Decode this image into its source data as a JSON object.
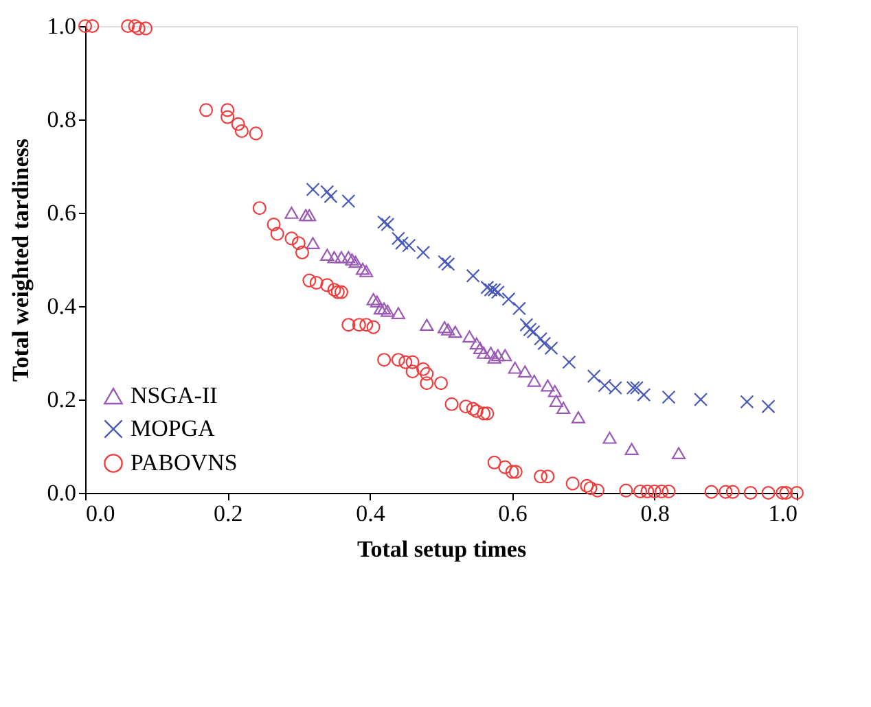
{
  "chart_data": {
    "type": "scatter",
    "xlabel": "Total setup times",
    "ylabel": "Total weighted tardiness",
    "xlim": [
      0,
      1
    ],
    "ylim": [
      0,
      1
    ],
    "xticks": [
      {
        "value": 0,
        "label": "0.0"
      },
      {
        "value": 0.2,
        "label": "0.2"
      },
      {
        "value": 0.4,
        "label": "0.4"
      },
      {
        "value": 0.6,
        "label": "0.6"
      },
      {
        "value": 0.8,
        "label": "0.8"
      },
      {
        "value": 1,
        "label": "1.0"
      }
    ],
    "yticks": [
      {
        "value": 0,
        "label": "0.0"
      },
      {
        "value": 0.2,
        "label": "0.2"
      },
      {
        "value": 0.4,
        "label": "0.4"
      },
      {
        "value": 0.6,
        "label": "0.6"
      },
      {
        "value": 0.8,
        "label": "0.8"
      },
      {
        "value": 1,
        "label": "1.0"
      }
    ],
    "grid": false,
    "legend": "bottom left",
    "series": [
      {
        "name": "NSGA-II",
        "color": "#9b59b6",
        "marker": "triangle",
        "x": [
          0.29,
          0.31,
          0.315,
          0.32,
          0.34,
          0.35,
          0.36,
          0.37,
          0.375,
          0.38,
          0.39,
          0.395,
          0.405,
          0.41,
          0.415,
          0.42,
          0.425,
          0.44,
          0.48,
          0.505,
          0.51,
          0.52,
          0.54,
          0.55,
          0.555,
          0.56,
          0.57,
          0.575,
          0.58,
          0.59,
          0.604,
          0.618,
          0.631,
          0.65,
          0.66,
          0.662,
          0.672,
          0.693,
          0.737,
          0.768,
          0.834
        ],
        "values": [
          0.6,
          0.595,
          0.595,
          0.535,
          0.51,
          0.505,
          0.505,
          0.505,
          0.5,
          0.495,
          0.48,
          0.475,
          0.415,
          0.41,
          0.395,
          0.395,
          0.39,
          0.385,
          0.36,
          0.355,
          0.35,
          0.345,
          0.335,
          0.32,
          0.31,
          0.3,
          0.3,
          0.29,
          0.295,
          0.295,
          0.268,
          0.26,
          0.24,
          0.23,
          0.218,
          0.197,
          0.182,
          0.162,
          0.118,
          0.094,
          0.085
        ]
      },
      {
        "name": "MOPGA",
        "color": "#4a5ab8",
        "marker": "cross",
        "x": [
          0.32,
          0.34,
          0.345,
          0.37,
          0.42,
          0.425,
          0.44,
          0.445,
          0.455,
          0.475,
          0.505,
          0.51,
          0.545,
          0.565,
          0.57,
          0.575,
          0.58,
          0.595,
          0.61,
          0.62,
          0.625,
          0.63,
          0.64,
          0.645,
          0.655,
          0.68,
          0.715,
          0.73,
          0.745,
          0.77,
          0.775,
          0.785,
          0.82,
          0.865,
          0.93,
          0.96
        ],
        "values": [
          0.65,
          0.645,
          0.635,
          0.625,
          0.58,
          0.575,
          0.545,
          0.535,
          0.53,
          0.515,
          0.495,
          0.49,
          0.465,
          0.44,
          0.435,
          0.435,
          0.43,
          0.415,
          0.395,
          0.36,
          0.35,
          0.345,
          0.33,
          0.32,
          0.31,
          0.28,
          0.25,
          0.23,
          0.225,
          0.225,
          0.225,
          0.21,
          0.205,
          0.2,
          0.195,
          0.185
        ]
      },
      {
        "name": "PABOVNS",
        "color": "#f03c3c",
        "marker": "circle",
        "x": [
          0,
          0.01,
          0.06,
          0.07,
          0.075,
          0.085,
          0.17,
          0.2,
          0.2,
          0.215,
          0.22,
          0.24,
          0.245,
          0.265,
          0.27,
          0.29,
          0.3,
          0.305,
          0.315,
          0.325,
          0.34,
          0.35,
          0.355,
          0.36,
          0.37,
          0.385,
          0.395,
          0.405,
          0.42,
          0.44,
          0.45,
          0.46,
          0.46,
          0.475,
          0.48,
          0.48,
          0.5,
          0.515,
          0.535,
          0.545,
          0.55,
          0.56,
          0.565,
          0.575,
          0.59,
          0.6,
          0.605,
          0.64,
          0.65,
          0.685,
          0.705,
          0.71,
          0.72,
          0.76,
          0.78,
          0.79,
          0.8,
          0.81,
          0.82,
          0.88,
          0.9,
          0.91,
          0.935,
          0.96,
          0.98,
          0.985,
          1.0
        ],
        "values": [
          1,
          1,
          1,
          1,
          0.995,
          0.995,
          0.82,
          0.82,
          0.805,
          0.79,
          0.775,
          0.77,
          0.61,
          0.575,
          0.555,
          0.545,
          0.535,
          0.515,
          0.455,
          0.45,
          0.445,
          0.435,
          0.43,
          0.43,
          0.36,
          0.36,
          0.36,
          0.355,
          0.285,
          0.285,
          0.28,
          0.28,
          0.26,
          0.265,
          0.255,
          0.235,
          0.235,
          0.19,
          0.185,
          0.18,
          0.175,
          0.17,
          0.17,
          0.065,
          0.055,
          0.045,
          0.045,
          0.035,
          0.035,
          0.02,
          0.015,
          0.01,
          0.005,
          0.005,
          0.003,
          0.003,
          0.003,
          0.003,
          0.003,
          0.002,
          0.002,
          0.002,
          0,
          0,
          0,
          0,
          0
        ]
      }
    ]
  }
}
